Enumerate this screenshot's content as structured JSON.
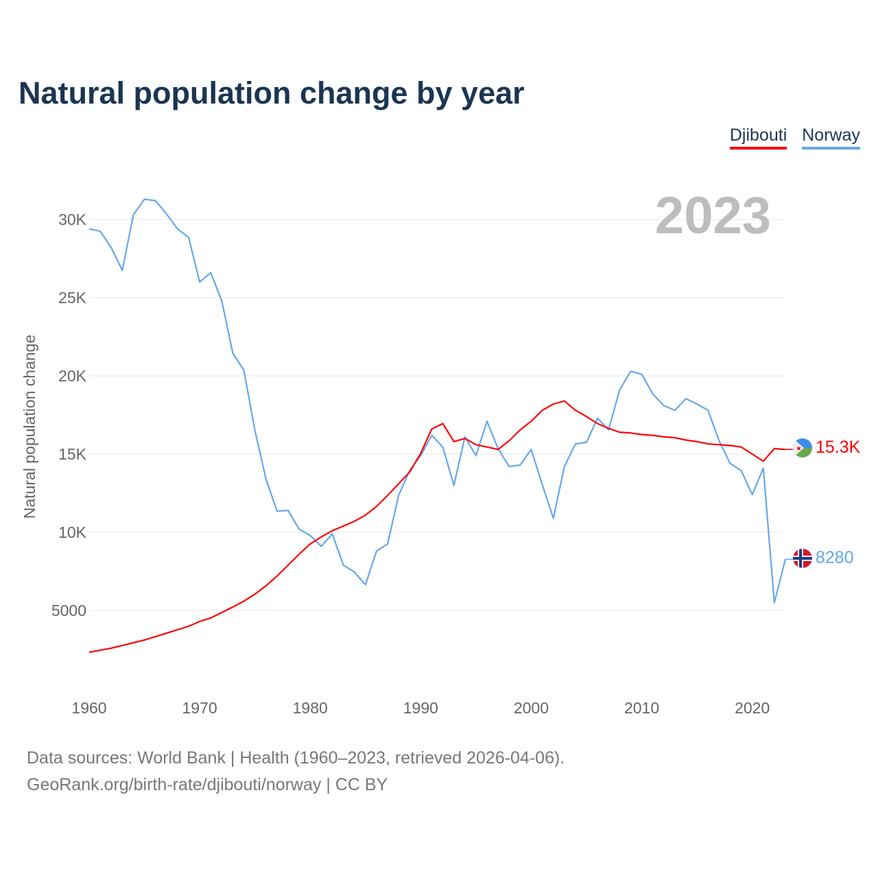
{
  "title": "Natural population change by year",
  "legend": [
    {
      "name": "Djibouti",
      "color": "#ff0000"
    },
    {
      "name": "Norway",
      "color": "#64a8ea"
    }
  ],
  "footer": {
    "line1": "Data sources: World Bank | Health (1960–2023, retrieved 2026-04-06).",
    "line2": "GeoRank.org/birth-rate/djibouti/norway | CC BY"
  },
  "chart_data": {
    "type": "line",
    "title": "Natural population change by year",
    "xlabel": "",
    "ylabel": "Natural population change",
    "year_label": "2023",
    "xlim": [
      1960,
      2023
    ],
    "ylim": [
      0,
      32500
    ],
    "x_ticks": [
      1960,
      1970,
      1980,
      1990,
      2000,
      2010,
      2020
    ],
    "y_ticks": [
      5000,
      10000,
      15000,
      20000,
      25000,
      30000
    ],
    "y_tick_labels": [
      "5000",
      "10K",
      "15K",
      "20K",
      "25K",
      "30K"
    ],
    "grid": true,
    "legend_position": "top-right",
    "x": [
      1960,
      1961,
      1962,
      1963,
      1964,
      1965,
      1966,
      1967,
      1968,
      1969,
      1970,
      1971,
      1972,
      1973,
      1974,
      1975,
      1976,
      1977,
      1978,
      1979,
      1980,
      1981,
      1982,
      1983,
      1984,
      1985,
      1986,
      1987,
      1988,
      1989,
      1990,
      1991,
      1992,
      1993,
      1994,
      1995,
      1996,
      1997,
      1998,
      1999,
      2000,
      2001,
      2002,
      2003,
      2004,
      2005,
      2006,
      2007,
      2008,
      2009,
      2010,
      2011,
      2012,
      2013,
      2014,
      2015,
      2016,
      2017,
      2018,
      2019,
      2020,
      2021,
      2022,
      2023
    ],
    "series": [
      {
        "name": "Djibouti",
        "color": "#ff0000",
        "end_label": "15.3K",
        "values": [
          2330,
          2460,
          2590,
          2760,
          2940,
          3110,
          3330,
          3550,
          3770,
          3990,
          4300,
          4520,
          4870,
          5220,
          5600,
          6050,
          6580,
          7200,
          7900,
          8600,
          9250,
          9700,
          10100,
          10400,
          10700,
          11100,
          11650,
          12350,
          13100,
          13850,
          15050,
          16600,
          16950,
          15800,
          16000,
          15600,
          15450,
          15300,
          15850,
          16550,
          17100,
          17800,
          18200,
          18400,
          17800,
          17400,
          16950,
          16650,
          16400,
          16350,
          16250,
          16200,
          16100,
          16050,
          15900,
          15800,
          15650,
          15600,
          15550,
          15450,
          15000,
          14550,
          15350,
          15300
        ]
      },
      {
        "name": "Norway",
        "color": "#64a8ea",
        "end_label": "8280",
        "values": [
          29400,
          29250,
          28200,
          26750,
          30300,
          31300,
          31200,
          30350,
          29400,
          28850,
          26000,
          26600,
          24800,
          21450,
          20350,
          16500,
          13400,
          11350,
          11400,
          10200,
          9800,
          9100,
          9900,
          7900,
          7450,
          6650,
          8800,
          9250,
          12350,
          13950,
          14900,
          16200,
          15450,
          13000,
          16100,
          14900,
          17100,
          15350,
          14200,
          14300,
          15300,
          13050,
          10900,
          14200,
          15650,
          15750,
          17300,
          16550,
          19100,
          20300,
          20100,
          18850,
          18100,
          17800,
          18550,
          18200,
          17800,
          15850,
          14400,
          13950,
          12400,
          14100,
          5500,
          8280
        ]
      }
    ]
  }
}
